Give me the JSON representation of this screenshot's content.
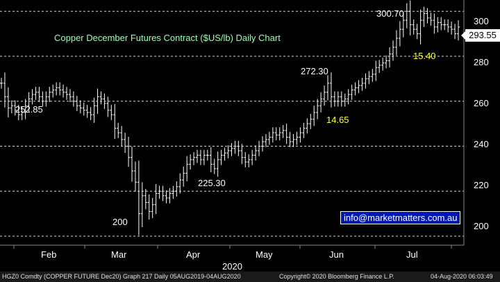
{
  "chart_data": {
    "type": "ohlc",
    "title": "Copper December Futures Contract ($US/lb) Daily Chart",
    "y_axis": {
      "ticks": [
        "200",
        "220",
        "240",
        "260",
        "280",
        "300"
      ],
      "ylim": [
        196,
        305
      ],
      "position": "right"
    },
    "x_axis": {
      "ticks": [
        "Feb",
        "Mar",
        "Apr",
        "May",
        "Jun",
        "Jul"
      ],
      "year_label": "2020"
    },
    "grid": "horizontal-dashed",
    "last_price": "293.55",
    "series_color": "#ffffff",
    "closes": [
      268,
      262,
      257,
      258,
      256,
      254,
      255,
      258,
      261,
      263,
      264,
      262,
      260,
      262,
      264,
      265,
      266,
      265,
      264,
      263,
      262,
      260,
      258,
      257,
      256,
      255,
      254,
      258,
      262,
      261,
      259,
      256,
      254,
      248,
      246,
      243,
      240,
      235,
      229,
      224,
      210,
      218,
      215,
      211,
      214,
      219,
      220,
      218,
      217,
      219,
      220,
      222,
      225,
      228,
      232,
      234,
      235,
      236,
      234,
      236,
      236,
      232,
      230,
      234,
      236,
      237,
      238,
      239,
      240,
      238,
      235,
      233,
      234,
      236,
      238,
      240,
      242,
      243,
      244,
      246,
      245,
      246,
      247,
      244,
      242,
      243,
      244,
      246,
      248,
      250,
      252,
      255,
      258,
      261,
      264,
      268,
      262,
      260,
      262,
      260,
      261,
      263,
      265,
      266,
      267,
      268,
      270,
      271,
      272,
      275,
      276,
      277,
      278,
      281,
      284,
      288,
      292,
      296,
      300,
      294,
      292,
      290,
      296,
      299,
      297,
      296,
      293,
      295,
      294,
      294,
      293,
      292,
      290,
      293
    ]
  },
  "annotations": {
    "high_300": "300.70",
    "high_272": "272.30",
    "low_252": "252.85",
    "low_225": "225.30",
    "low_200": "200",
    "move_1465": "14.65",
    "move_1540": "15.40"
  },
  "website": "info@marketmatters.com.au",
  "footer": {
    "ticker": "HGZ0 Comdty (COPPER FUTURE   Dec20) Graph 217  Daily 05AUG2019-04AUG2020",
    "copyright": "Copyright© 2020 Bloomberg Finance L.P.",
    "timestamp": "04-Aug-2020 06:03:49"
  }
}
